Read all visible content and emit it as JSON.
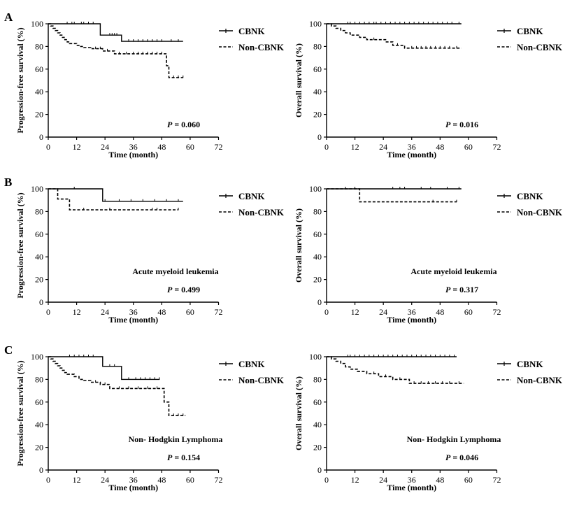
{
  "figure": {
    "panel_letters": [
      "A",
      "B",
      "C"
    ],
    "legend_labels": [
      "CBNK",
      "Non-CBNK"
    ],
    "xlabel": "Time (month)",
    "ylabel_pfs": "Progression-free survival (%)",
    "ylabel_os": "Overall survival (%)",
    "xticks": [
      0,
      12,
      24,
      36,
      48,
      60,
      72
    ],
    "yticks": [
      0,
      20,
      40,
      60,
      80,
      100
    ],
    "line_color": "#000000"
  },
  "chart_data": [
    {
      "type": "line",
      "panel": "A",
      "ylabel": "Progression-free survival (%)",
      "xlabel": "Time (month)",
      "xlim": [
        0,
        72
      ],
      "ylim": [
        0,
        100
      ],
      "p_label": "P",
      "p_value": "= 0.060",
      "subtitle": "",
      "series": [
        {
          "name": "CBNK",
          "style": "solid",
          "x": [
            0,
            22,
            22,
            31,
            31,
            57
          ],
          "y": [
            100,
            100,
            90,
            90,
            84.5,
            84.5
          ],
          "censors": [
            8,
            10,
            11,
            14,
            15,
            17,
            19,
            26,
            27,
            28,
            29,
            34,
            36,
            38,
            40,
            42,
            44,
            46,
            48,
            52,
            55
          ]
        },
        {
          "name": "Non-CBNK",
          "style": "dashed",
          "x": [
            0,
            1,
            1,
            2,
            2,
            3,
            3,
            4,
            4,
            5,
            5,
            6,
            6,
            7,
            7,
            8,
            8,
            9,
            9,
            12,
            12,
            13,
            13,
            15,
            15,
            18,
            18,
            23,
            23,
            28,
            28,
            50,
            50,
            51,
            51,
            57
          ],
          "y": [
            100,
            100,
            98,
            98,
            96,
            96,
            94,
            94,
            92,
            92,
            90,
            90,
            88,
            88,
            86,
            86,
            84,
            84,
            82.5,
            82.5,
            81,
            81,
            80,
            80,
            79,
            79,
            78,
            78,
            76,
            76,
            73.5,
            73.5,
            63,
            63,
            52.5,
            52.5
          ],
          "censors": [
            20,
            22,
            25,
            30,
            33,
            36,
            38,
            40,
            42,
            44,
            46,
            48,
            53,
            55,
            57
          ]
        }
      ]
    },
    {
      "type": "line",
      "panel": "A",
      "ylabel": "Overall survival (%)",
      "xlabel": "Time (month)",
      "xlim": [
        0,
        72
      ],
      "ylim": [
        0,
        100
      ],
      "p_label": "P",
      "p_value": "= 0.016",
      "subtitle": "",
      "series": [
        {
          "name": "CBNK",
          "style": "solid",
          "x": [
            0,
            57
          ],
          "y": [
            100,
            100
          ],
          "censors": [
            9,
            10,
            12,
            14,
            16,
            18,
            20,
            21,
            23,
            25,
            27,
            29,
            31,
            33,
            35,
            37,
            39,
            41,
            43,
            45,
            47,
            49,
            51,
            53,
            56
          ]
        },
        {
          "name": "Non-CBNK",
          "style": "dashed",
          "x": [
            0,
            2,
            2,
            4,
            4,
            6,
            6,
            8,
            8,
            10,
            10,
            14,
            14,
            17,
            17,
            25,
            25,
            28,
            28,
            33,
            33,
            57
          ],
          "y": [
            100,
            100,
            98,
            98,
            96,
            96,
            94,
            94,
            92,
            92,
            90,
            90,
            88,
            88,
            86,
            86,
            84,
            84,
            81,
            81,
            78.5,
            78.5
          ],
          "censors": [
            20,
            30,
            36,
            38,
            40,
            42,
            44,
            46,
            48,
            50,
            52,
            55
          ]
        }
      ]
    },
    {
      "type": "line",
      "panel": "B",
      "ylabel": "Progression-free survival (%)",
      "xlabel": "Time (month)",
      "xlim": [
        0,
        72
      ],
      "ylim": [
        0,
        100
      ],
      "p_label": "P",
      "p_value": "= 0.499",
      "subtitle": "Acute myeloid leukemia",
      "series": [
        {
          "name": "CBNK",
          "style": "solid",
          "x": [
            0,
            23,
            23,
            57
          ],
          "y": [
            100,
            100,
            89,
            89
          ],
          "censors": [
            11,
            24,
            30,
            35,
            40,
            45,
            50,
            55
          ]
        },
        {
          "name": "Non-CBNK",
          "style": "dashed",
          "x": [
            0,
            4,
            4,
            9,
            9,
            55
          ],
          "y": [
            100,
            100,
            91,
            91,
            81.5,
            81.5
          ],
          "censors": [
            15,
            26,
            44,
            46,
            55
          ]
        }
      ]
    },
    {
      "type": "line",
      "panel": "B",
      "ylabel": "Overall survival (%)",
      "xlabel": "Time (month)",
      "xlim": [
        0,
        72
      ],
      "ylim": [
        0,
        100
      ],
      "p_label": "P",
      "p_value": "= 0.317",
      "subtitle": "Acute myeloid leukemia",
      "series": [
        {
          "name": "CBNK",
          "style": "solid",
          "x": [
            0,
            57
          ],
          "y": [
            100,
            100
          ],
          "censors": [
            8,
            12,
            28,
            31,
            33,
            40,
            44,
            51,
            56
          ]
        },
        {
          "name": "Non-CBNK",
          "style": "dashed",
          "x": [
            0,
            14,
            14,
            55
          ],
          "y": [
            100,
            100,
            88.5,
            88.5
          ],
          "censors": [
            45,
            55
          ]
        }
      ]
    },
    {
      "type": "line",
      "panel": "C",
      "ylabel": "Progression-free survival (%)",
      "xlabel": "Time (month)",
      "xlim": [
        0,
        72
      ],
      "ylim": [
        0,
        100
      ],
      "p_label": "P",
      "p_value": "= 0.154",
      "subtitle": "Non- Hodgkin Lymphoma",
      "series": [
        {
          "name": "CBNK",
          "style": "solid",
          "x": [
            0,
            23,
            23,
            31,
            31,
            47
          ],
          "y": [
            100,
            100,
            91.5,
            91.5,
            80,
            80
          ],
          "censors": [
            9,
            11,
            13,
            15,
            17,
            19,
            26,
            28,
            34,
            37,
            39,
            41,
            43,
            45,
            47
          ]
        },
        {
          "name": "Non-CBNK",
          "style": "dashed",
          "x": [
            0,
            1,
            1,
            2,
            2,
            3,
            3,
            4,
            4,
            5,
            5,
            6,
            6,
            7,
            7,
            8,
            8,
            11,
            11,
            13,
            13,
            15,
            15,
            18,
            18,
            22,
            22,
            26,
            26,
            49,
            49,
            51,
            51,
            58
          ],
          "y": [
            100,
            100,
            98,
            98,
            96,
            96,
            94,
            94,
            92,
            92,
            90,
            90,
            88,
            88,
            86,
            86,
            84.5,
            84.5,
            82.5,
            82.5,
            80,
            80,
            79,
            79,
            77.5,
            77.5,
            75.5,
            75.5,
            72,
            72,
            60,
            60,
            48,
            48
          ],
          "censors": [
            20,
            24,
            30,
            34,
            38,
            42,
            46,
            53,
            55,
            57
          ]
        }
      ]
    },
    {
      "type": "line",
      "panel": "C",
      "ylabel": "Overall survival (%)",
      "xlabel": "Time (month)",
      "xlim": [
        0,
        72
      ],
      "ylim": [
        0,
        100
      ],
      "p_label": "P",
      "p_value": "= 0.046",
      "subtitle": "Non- Hodgkin Lymphoma",
      "series": [
        {
          "name": "CBNK",
          "style": "solid",
          "x": [
            0,
            55
          ],
          "y": [
            100,
            100
          ],
          "censors": [
            9,
            10,
            12,
            14,
            16,
            18,
            20,
            22,
            24,
            26,
            28,
            30,
            32,
            34,
            36,
            38,
            40,
            42,
            44,
            46,
            48,
            50,
            52,
            54
          ]
        },
        {
          "name": "Non-CBNK",
          "style": "dashed",
          "x": [
            0,
            2,
            2,
            4,
            4,
            6,
            6,
            8,
            8,
            10,
            10,
            13,
            13,
            17,
            17,
            22,
            22,
            28,
            28,
            35,
            35,
            58
          ],
          "y": [
            100,
            100,
            98,
            98,
            96,
            96,
            94,
            94,
            91,
            91,
            89,
            89,
            87,
            87,
            85,
            85,
            82.5,
            82.5,
            80,
            80,
            76.5,
            76.5
          ],
          "censors": [
            20,
            25,
            31,
            37,
            40,
            43,
            46,
            49,
            52,
            56
          ]
        }
      ]
    }
  ]
}
